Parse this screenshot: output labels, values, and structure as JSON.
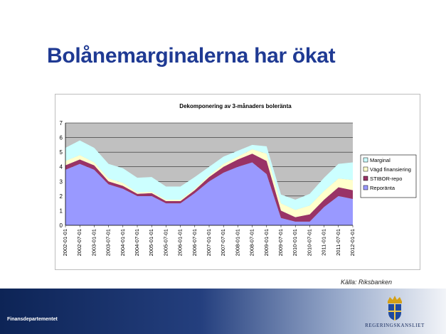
{
  "slide": {
    "title": "Bolånemarginalerna har ökat",
    "source": "Källa: Riksbanken",
    "footer_department": "Finansdepartementet",
    "logo_text": "REGERINGSKANSLIET"
  },
  "chart_data": {
    "type": "area",
    "stacked": true,
    "title": "Dekomponering av 3-månaders boleränta",
    "xlabel": "",
    "ylabel": "",
    "ylim": [
      0,
      7
    ],
    "yticks": [
      0,
      1,
      2,
      3,
      4,
      5,
      6,
      7
    ],
    "grid": "horizontal",
    "legend_position": "right",
    "x": [
      "2002-01-01",
      "2002-07-01",
      "2003-01-01",
      "2003-07-01",
      "2004-01-01",
      "2004-07-01",
      "2005-01-01",
      "2005-07-01",
      "2006-01-01",
      "2006-07-01",
      "2007-01-01",
      "2007-07-01",
      "2008-01-01",
      "2008-07-01",
      "2009-01-01",
      "2009-07-01",
      "2010-01-01",
      "2010-07-01",
      "2011-01-01",
      "2011-07-01",
      "2012-01-01"
    ],
    "series": [
      {
        "name": "Reporänta",
        "color": "#9999ff",
        "values": [
          3.8,
          4.2,
          3.8,
          2.8,
          2.5,
          2.0,
          2.0,
          1.5,
          1.5,
          2.2,
          3.0,
          3.6,
          4.0,
          4.3,
          3.5,
          0.5,
          0.25,
          0.25,
          1.25,
          2.0,
          1.8
        ]
      },
      {
        "name": "STIBOR-repo",
        "color": "#993366",
        "values": [
          0.3,
          0.3,
          0.3,
          0.2,
          0.2,
          0.15,
          0.2,
          0.15,
          0.15,
          0.2,
          0.3,
          0.4,
          0.5,
          0.6,
          0.9,
          0.5,
          0.3,
          0.5,
          0.5,
          0.6,
          0.6
        ]
      },
      {
        "name": "Vägd finansiering",
        "color": "#ffffcc",
        "values": [
          0.3,
          0.3,
          0.2,
          0.2,
          0.2,
          0.1,
          0.1,
          0.1,
          0.1,
          0.1,
          0.1,
          0.2,
          0.2,
          0.3,
          0.5,
          0.5,
          0.5,
          0.6,
          0.6,
          0.6,
          0.7
        ]
      },
      {
        "name": "Marginal",
        "color": "#ccffff",
        "values": [
          0.9,
          1.0,
          1.0,
          1.0,
          1.0,
          1.0,
          1.0,
          0.9,
          0.9,
          0.8,
          0.6,
          0.5,
          0.4,
          0.3,
          0.5,
          0.6,
          0.7,
          0.8,
          0.9,
          1.0,
          1.2
        ]
      }
    ]
  }
}
